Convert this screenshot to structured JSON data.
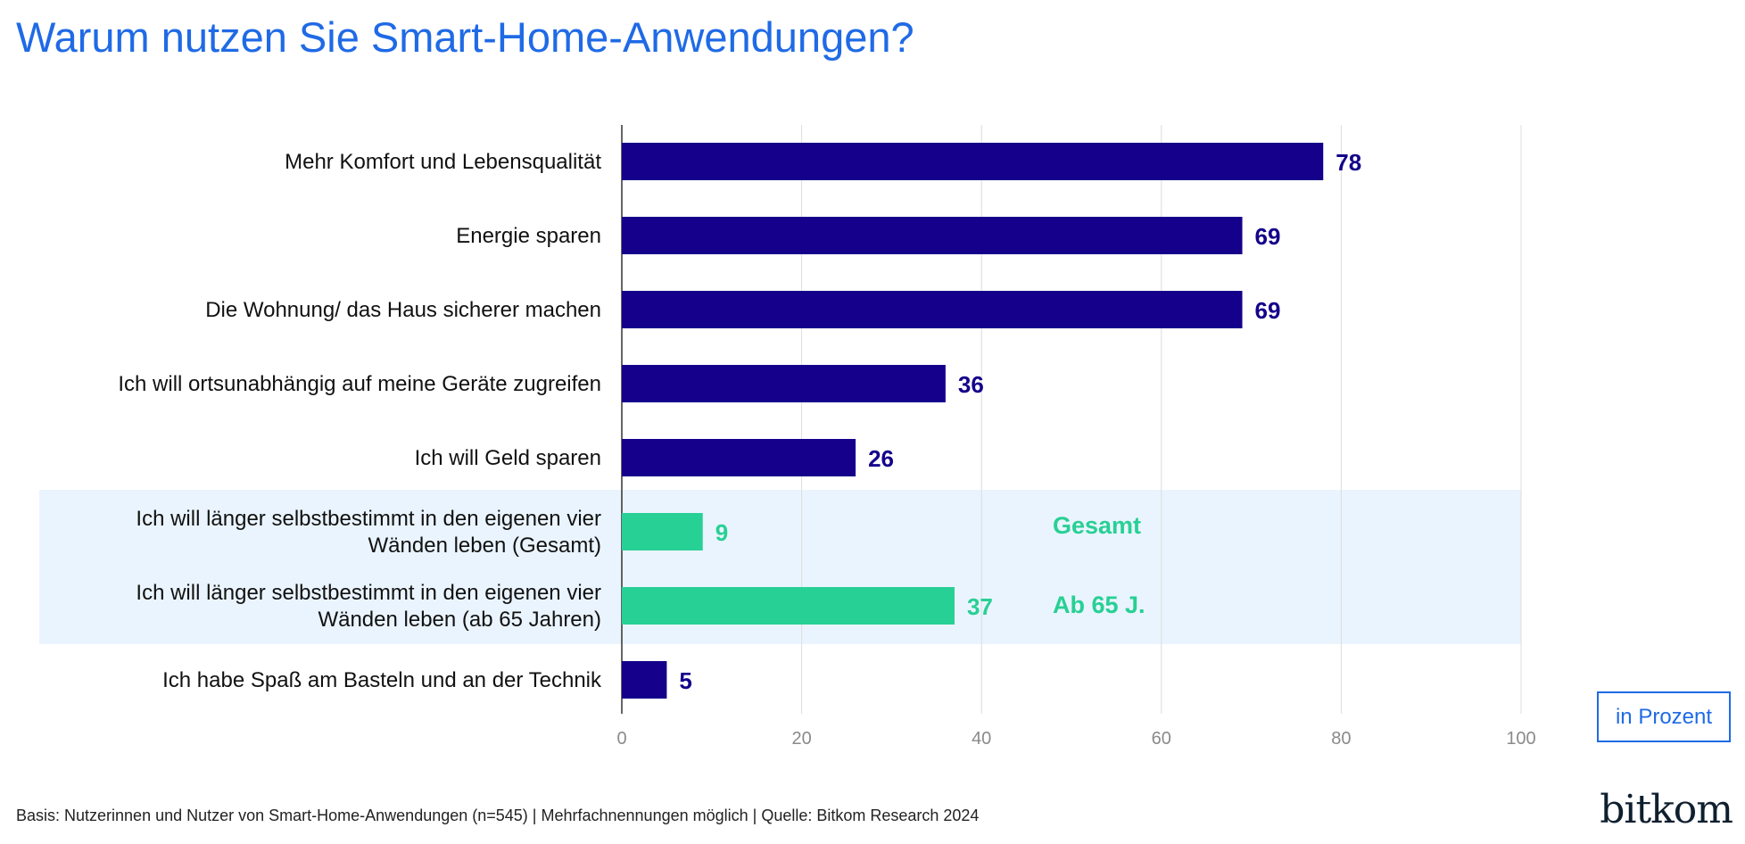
{
  "title": "Warum nutzen Sie Smart-Home-Anwendungen?",
  "unit_label": "in Prozent",
  "footnote": "Basis: Nutzerinnen und Nutzer von Smart-Home-Anwendungen (n=545) | Mehrfachnennungen möglich | Quelle: Bitkom Research 2024",
  "logo_text": "bitkom",
  "colors": {
    "bar_primary": "#14008a",
    "bar_highlight": "#27d094",
    "highlight_bg": "#eaf4fe",
    "grid": "#dcdcdc",
    "axis": "#333333"
  },
  "chart_data": {
    "type": "bar",
    "orientation": "horizontal",
    "xlim": [
      0,
      100
    ],
    "ticks": [
      0,
      20,
      40,
      60,
      80,
      100
    ],
    "grid": true,
    "categories": [
      [
        "Mehr Komfort und Lebensqualität"
      ],
      [
        "Energie sparen"
      ],
      [
        "Die Wohnung/ das Haus sicherer machen"
      ],
      [
        "Ich will ortsunabhängig auf meine Geräte zugreifen"
      ],
      [
        "Ich will Geld sparen"
      ],
      [
        "Ich will länger selbstbestimmt in den eigenen vier",
        "Wänden leben (Gesamt)"
      ],
      [
        "Ich will länger selbstbestimmt in den eigenen vier",
        "Wänden leben (ab 65 Jahren)"
      ],
      [
        "Ich habe Spaß am Basteln und an der Technik"
      ]
    ],
    "values": [
      78,
      69,
      69,
      36,
      26,
      9,
      37,
      5
    ],
    "highlighted": [
      5,
      6
    ],
    "highlight_annotations": [
      "Gesamt",
      "Ab 65 J."
    ]
  }
}
